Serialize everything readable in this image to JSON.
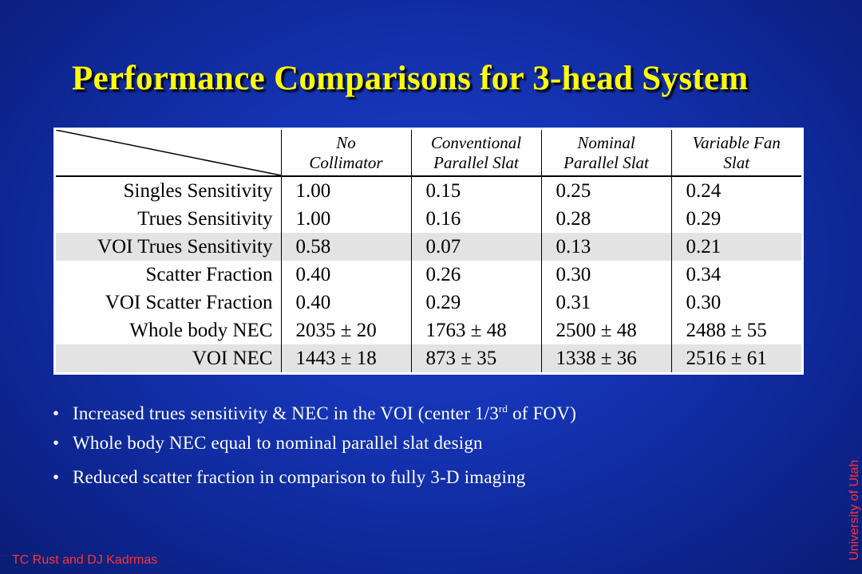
{
  "title": "Performance Comparisons for 3-head System",
  "table": {
    "columns": [
      {
        "line1": "No",
        "line2": "Collimator"
      },
      {
        "line1": "Conventional",
        "line2": "Parallel Slat"
      },
      {
        "line1": "Nominal",
        "line2": "Parallel Slat"
      },
      {
        "line1": "Variable Fan",
        "line2": "Slat"
      }
    ],
    "rows": [
      {
        "label": "Singles Sensitivity",
        "values": [
          "1.00",
          "0.15",
          "0.25",
          "0.24"
        ],
        "highlighted": false
      },
      {
        "label": "Trues Sensitivity",
        "values": [
          "1.00",
          "0.16",
          "0.28",
          "0.29"
        ],
        "highlighted": false
      },
      {
        "label": "VOI Trues Sensitivity",
        "values": [
          "0.58",
          "0.07",
          "0.13",
          "0.21"
        ],
        "highlighted": true
      },
      {
        "label": "Scatter Fraction",
        "values": [
          "0.40",
          "0.26",
          "0.30",
          "0.34"
        ],
        "highlighted": false
      },
      {
        "label": "VOI Scatter Fraction",
        "values": [
          "0.40",
          "0.29",
          "0.31",
          "0.30"
        ],
        "highlighted": false
      },
      {
        "label": "Whole body NEC",
        "values": [
          "2035 ± 20",
          "1763 ± 48",
          "2500 ± 48",
          "2488 ± 55"
        ],
        "highlighted": false
      },
      {
        "label": "VOI NEC",
        "values": [
          "1443 ± 18",
          "873 ± 35",
          "1338 ± 36",
          "2516 ± 61"
        ],
        "highlighted": true
      }
    ]
  },
  "bullets": {
    "b1": {
      "text": "Increased trues sensitivity & NEC in the VOI (center 1/3",
      "sup": "rd",
      "tail": " of FOV)"
    },
    "b2": {
      "text": "Whole body NEC equal to nominal parallel slat design"
    },
    "b3": {
      "text": "Reduced scatter fraction in comparison to fully 3-D imaging"
    }
  },
  "footer": {
    "affiliation": "University of Utah",
    "authors": "TC Rust and DJ Kadrmas"
  },
  "colors": {
    "title": "#ffff00",
    "footer_text": "#ff3333",
    "highlight_row": "#e3e3e3",
    "background": "#1534b4"
  }
}
